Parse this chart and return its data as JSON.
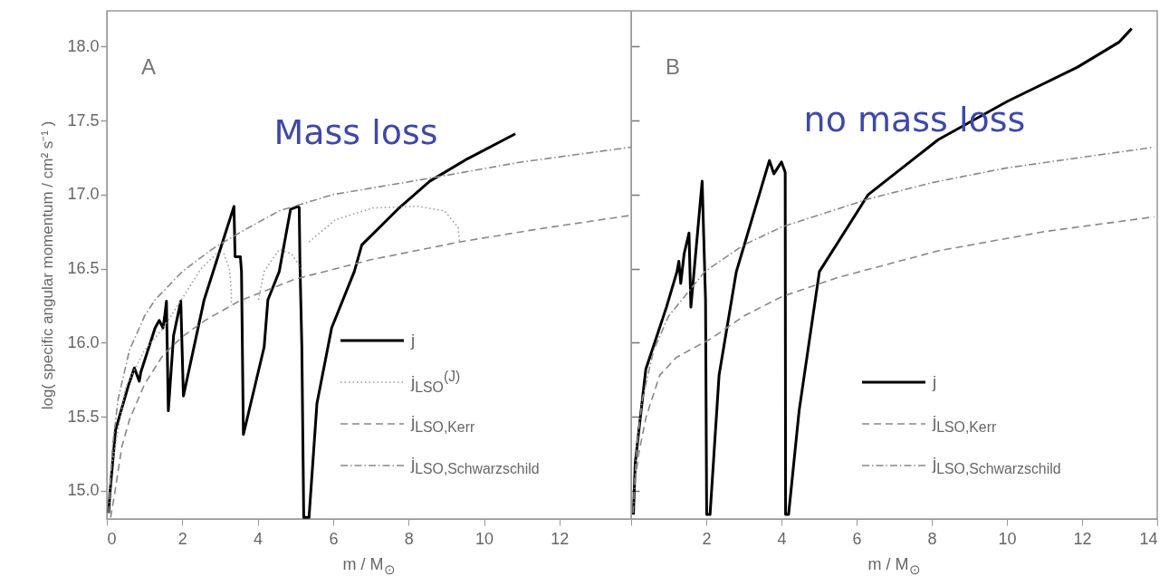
{
  "chart_data": [
    {
      "type": "line",
      "xlabel": "m / M$_{⊙}$",
      "ylabel": "log( specific angular momentum / cm² s⁻¹ )",
      "annotations": [
        "A",
        "Mass loss"
      ],
      "xlim": [
        0,
        13.9
      ],
      "ylim": [
        14.81,
        18.24
      ],
      "xticks": [
        0,
        2,
        4,
        6,
        8,
        10,
        12
      ],
      "yticks": [
        {
          "value": 15,
          "label": "15.0"
        },
        {
          "value": 15.5,
          "label": "15.5"
        },
        {
          "value": 16,
          "label": "16.0"
        },
        {
          "value": 16.5,
          "label": "16.5"
        },
        {
          "value": 17,
          "label": "17.0"
        },
        {
          "value": 17.5,
          "label": "17.5"
        },
        {
          "value": 18,
          "label": "18.0"
        }
      ],
      "grid": false,
      "legend": "bottom right",
      "series": [
        {
          "name": "j",
          "color": "#000000",
          "line_style": "solid",
          "x": [
            0.05,
            0.08,
            0.23,
            0.57,
            0.73,
            0.86,
            0.9,
            1.28,
            1.39,
            1.49,
            1.53,
            1.58,
            1.63,
            1.77,
            1.96,
            2.03,
            2.58,
            3.37,
            3.4,
            3.54,
            3.57,
            3.62,
            4.17,
            4.27,
            4.57,
            4.87,
            5.07,
            5.1,
            5.12,
            5.17,
            5.22,
            5.36,
            5.57,
            5.96,
            6.56,
            6.76,
            7.75,
            8.56,
            9.55,
            10.83
          ],
          "values": [
            14.85,
            14.98,
            15.41,
            15.71,
            15.83,
            15.74,
            15.8,
            16.1,
            16.15,
            16.1,
            16.17,
            16.28,
            15.54,
            16.05,
            16.28,
            15.64,
            16.29,
            16.92,
            16.58,
            16.58,
            16.48,
            15.38,
            15.97,
            16.29,
            16.48,
            16.9,
            16.92,
            16.91,
            16.53,
            15.97,
            14.82,
            14.82,
            15.59,
            16.1,
            16.48,
            16.66,
            16.91,
            17.09,
            17.24,
            17.41
          ]
        },
        {
          "name": "j$_{LSO}$$^{(J)}$",
          "color": "#999999",
          "line_style": "dotted",
          "x": [
            0.15,
            0.5,
            1.0,
            1.5,
            2.0,
            2.5,
            2.9,
            3.1,
            3.25,
            3.3,
            3.3,
            3.6,
            4.02,
            4.17,
            4.57,
            4.9,
            5.15,
            5.25,
            5.36,
            6.06,
            7.06,
            8.25,
            8.95,
            9.31,
            9.35
          ],
          "values": [
            15.2,
            15.7,
            15.95,
            16.1,
            16.3,
            16.5,
            16.6,
            16.6,
            16.5,
            16.35,
            16.25,
            null,
            16.29,
            16.48,
            16.63,
            16.6,
            16.5,
            null,
            16.68,
            16.83,
            16.91,
            16.92,
            16.89,
            16.78,
            16.68
          ]
        },
        {
          "name": "j$_{LSO,Kerr}$",
          "color": "#888888",
          "line_style": "dashed",
          "x": [
            0.1,
            0.2,
            0.4,
            0.6,
            1,
            1.5,
            2,
            2.6,
            3.5,
            5,
            7,
            9.35,
            11.5,
            13.9
          ],
          "values": [
            14.82,
            14.97,
            15.3,
            15.48,
            15.72,
            15.92,
            16.04,
            16.15,
            16.28,
            16.43,
            16.56,
            16.68,
            16.77,
            16.86
          ]
        },
        {
          "name": "j$_{LSO,Schwarzschild}$",
          "color": "#888888",
          "line_style": "dashdot",
          "x": [
            0.05,
            0.15,
            0.3,
            0.6,
            1.0,
            1.28,
            2,
            2.78,
            3.5,
            4.57,
            6,
            8.56,
            11,
            13.9
          ],
          "values": [
            14.85,
            15.3,
            15.62,
            15.95,
            16.18,
            16.29,
            16.48,
            16.63,
            16.74,
            16.89,
            17.0,
            17.11,
            17.22,
            17.32
          ]
        }
      ]
    },
    {
      "type": "line",
      "xlabel": "m / M$_{⊙}$",
      "annotations": [
        "B",
        "no mass loss"
      ],
      "xlim": [
        0,
        14
      ],
      "ylim": [
        14.81,
        18.24
      ],
      "xticks": [
        {
          "value": 0,
          "label": null
        },
        2,
        4,
        6,
        8,
        10,
        12,
        14
      ],
      "yticks": [
        15,
        15.5,
        16,
        16.5,
        17,
        17.5,
        18
      ],
      "tick_labels": "x",
      "grid": false,
      "legend": "bottom right",
      "series": [
        {
          "name": "j",
          "color": "#000000",
          "line_style": "solid",
          "x": [
            0.06,
            0.11,
            0.39,
            0.94,
            1.22,
            1.27,
            1.32,
            1.41,
            1.54,
            1.59,
            1.89,
            1.98,
            2.01,
            2.1,
            2.34,
            2.8,
            3.07,
            3.68,
            3.8,
            4.0,
            4.1,
            4.11,
            4.19,
            4.47,
            5.01,
            6.31,
            8.17,
            10.02,
            11.88,
            12.99,
            13.32
          ],
          "values": [
            14.84,
            15.19,
            15.82,
            16.24,
            16.48,
            16.55,
            16.4,
            16.6,
            16.74,
            16.24,
            17.09,
            16.29,
            14.84,
            14.84,
            15.78,
            16.48,
            16.71,
            17.23,
            17.14,
            17.22,
            17.15,
            14.84,
            14.84,
            15.54,
            16.48,
            17.0,
            17.37,
            17.63,
            17.86,
            18.03,
            18.12
          ]
        },
        {
          "name": "j$_{LSO,Kerr}$",
          "color": "#888888",
          "line_style": "dashed",
          "x": [
            0.11,
            0.2,
            0.4,
            0.76,
            1.2,
            2.14,
            3,
            4.0,
            5.5,
            8.17,
            11,
            13.92
          ],
          "values": [
            15.07,
            15.25,
            15.5,
            15.78,
            15.9,
            16.03,
            16.18,
            16.31,
            16.44,
            16.62,
            16.75,
            16.85
          ]
        },
        {
          "name": "j$_{LSO,Schwarzschild}$",
          "color": "#888888",
          "line_style": "dashdot",
          "x": [
            0.05,
            0.15,
            0.3,
            0.6,
            1.0,
            1.96,
            3,
            4.0,
            6.31,
            8,
            10.0,
            13.92
          ],
          "values": [
            14.85,
            15.3,
            15.62,
            15.95,
            16.18,
            16.48,
            16.66,
            16.78,
            16.97,
            17.08,
            17.18,
            17.32
          ]
        }
      ]
    }
  ]
}
